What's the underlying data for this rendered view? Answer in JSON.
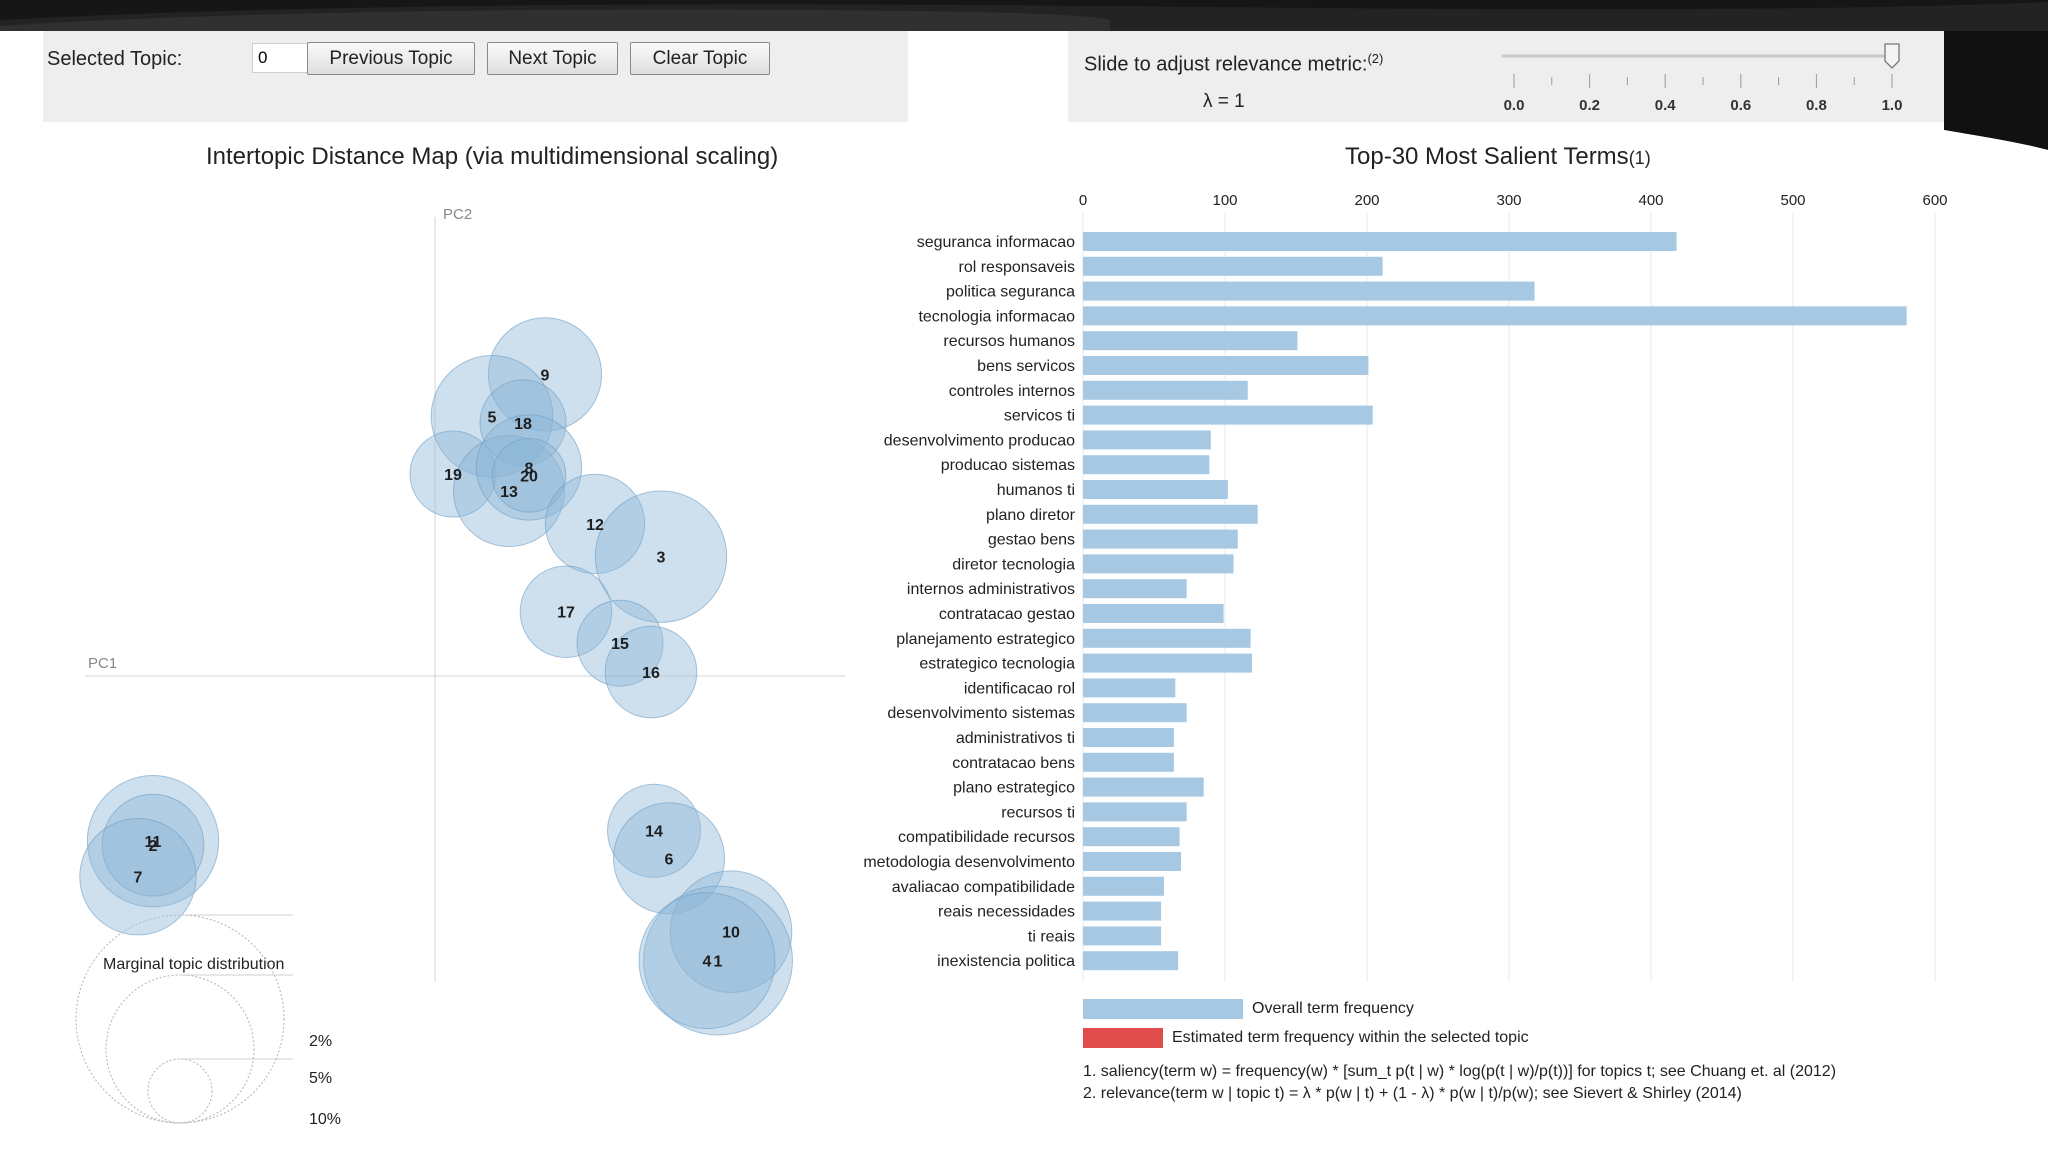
{
  "controls": {
    "selected_topic_label": "Selected Topic:",
    "selected_topic_value": "0",
    "prev_label": "Previous Topic",
    "next_label": "Next Topic",
    "clear_label": "Clear Topic",
    "slider_label": "Slide to adjust relevance metric:",
    "slider_label_note": "(2)",
    "lambda_text": "λ = 1",
    "lambda_value": 1,
    "slider_ticks": [
      "0.0",
      "0.2",
      "0.4",
      "0.6",
      "0.8",
      "1.0"
    ]
  },
  "colors": {
    "circle_fill": "#8ab6d6",
    "circle_stroke": "#6f9fc4",
    "bar_overall": "#a6c8e2",
    "bar_topic": "#e04b4b",
    "panel_bg": "#eeeeee"
  },
  "chart_data": [
    {
      "type": "scatter",
      "title": "Intertopic Distance Map (via multidimensional scaling)",
      "xlabel": "PC1",
      "ylabel": "PC2",
      "xlim": [
        -0.35,
        0.45
      ],
      "ylim": [
        -0.35,
        0.35
      ],
      "points": [
        {
          "label": "9",
          "x": 0.11,
          "y": 0.23,
          "size": 5.2
        },
        {
          "label": "5",
          "x": 0.057,
          "y": 0.198,
          "size": 6.0
        },
        {
          "label": "18",
          "x": 0.088,
          "y": 0.193,
          "size": 3.0
        },
        {
          "label": "19",
          "x": 0.018,
          "y": 0.154,
          "size": 3.0
        },
        {
          "label": "13",
          "x": 0.074,
          "y": 0.141,
          "size": 5.0
        },
        {
          "label": "8",
          "x": 0.094,
          "y": 0.159,
          "size": 4.5
        },
        {
          "label": "20",
          "x": 0.094,
          "y": 0.153,
          "size": 2.2
        },
        {
          "label": "12",
          "x": 0.16,
          "y": 0.116,
          "size": 4.0
        },
        {
          "label": "3",
          "x": 0.226,
          "y": 0.091,
          "size": 7.0
        },
        {
          "label": "17",
          "x": 0.131,
          "y": 0.049,
          "size": 3.4
        },
        {
          "label": "15",
          "x": 0.185,
          "y": 0.025,
          "size": 3.0
        },
        {
          "label": "16",
          "x": 0.216,
          "y": 0.003,
          "size": 3.4
        },
        {
          "label": "11",
          "x": -0.282,
          "y": -0.126,
          "size": 7.0
        },
        {
          "label": "2",
          "x": -0.282,
          "y": -0.129,
          "size": 4.2
        },
        {
          "label": "7",
          "x": -0.297,
          "y": -0.153,
          "size": 5.5
        },
        {
          "label": "14",
          "x": 0.219,
          "y": -0.118,
          "size": 3.5
        },
        {
          "label": "6",
          "x": 0.234,
          "y": -0.139,
          "size": 5.0
        },
        {
          "label": "10",
          "x": 0.296,
          "y": -0.195,
          "size": 6.0
        },
        {
          "label": "1",
          "x": 0.283,
          "y": -0.217,
          "size": 9.0
        },
        {
          "label": "4",
          "x": 0.272,
          "y": -0.217,
          "size": 7.5
        }
      ],
      "legend_title": "Marginal topic distribution",
      "legend_entries": [
        "2%",
        "5%",
        "10%"
      ]
    },
    {
      "type": "bar",
      "orientation": "horizontal",
      "title": "Top-30 Most Salient Terms",
      "title_note": "(1)",
      "xlim": [
        0,
        600
      ],
      "xticks": [
        "0",
        "100",
        "200",
        "300",
        "400",
        "500",
        "600"
      ],
      "categories": [
        "seguranca informacao",
        "rol responsaveis",
        "politica seguranca",
        "tecnologia informacao",
        "recursos humanos",
        "bens servicos",
        "controles internos",
        "servicos ti",
        "desenvolvimento producao",
        "producao sistemas",
        "humanos ti",
        "plano diretor",
        "gestao bens",
        "diretor tecnologia",
        "internos administrativos",
        "contratacao gestao",
        "planejamento estrategico",
        "estrategico tecnologia",
        "identificacao rol",
        "desenvolvimento sistemas",
        "administrativos ti",
        "contratacao bens",
        "plano estrategico",
        "recursos ti",
        "compatibilidade recursos",
        "metodologia desenvolvimento",
        "avaliacao compatibilidade",
        "reais necessidades",
        "ti reais",
        "inexistencia politica"
      ],
      "series": [
        {
          "name": "Overall term frequency",
          "values": [
            418,
            211,
            318,
            580,
            151,
            201,
            116,
            204,
            90,
            89,
            102,
            123,
            109,
            106,
            73,
            99,
            118,
            119,
            65,
            73,
            64,
            64,
            85,
            73,
            68,
            69,
            57,
            55,
            55,
            67
          ]
        }
      ],
      "legend": [
        "Overall term frequency",
        "Estimated term frequency within the selected topic"
      ],
      "footnotes": [
        "1. saliency(term w) = frequency(w) * [sum_t p(t | w) * log(p(t | w)/p(t))] for topics t; see Chuang et. al (2012)",
        "2. relevance(term w | topic t) = λ * p(w | t) + (1 - λ) * p(w | t)/p(w); see Sievert & Shirley (2014)"
      ]
    }
  ]
}
